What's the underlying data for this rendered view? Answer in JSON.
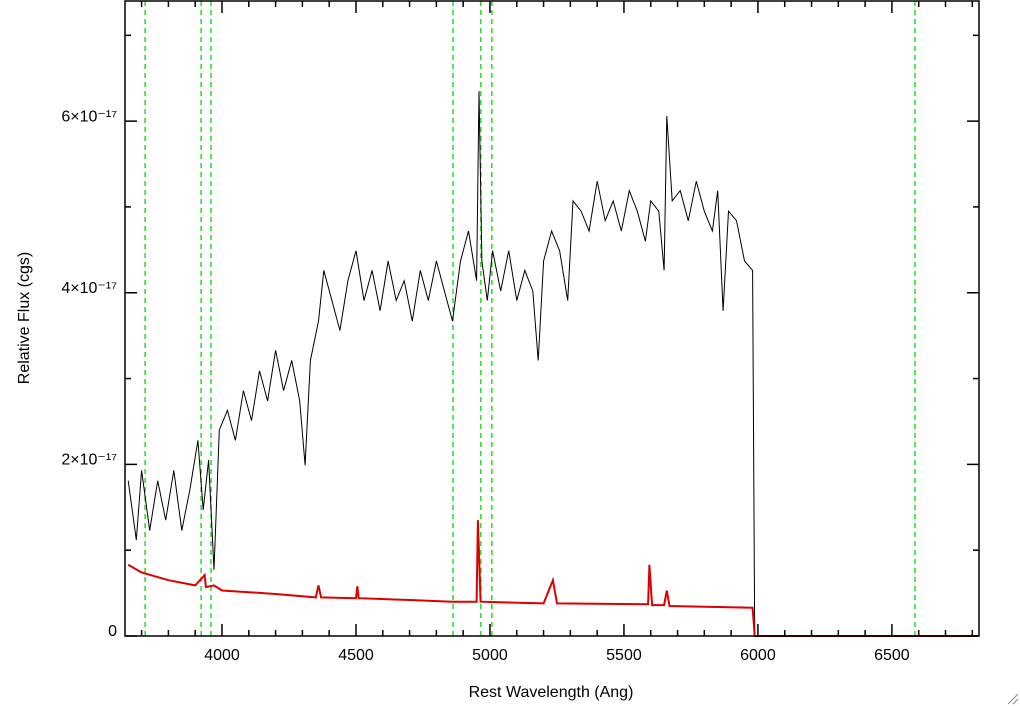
{
  "chart_data": {
    "type": "line",
    "xlabel": "Rest Wavelength (Ang)",
    "ylabel": "Relative Flux (cgs)",
    "xlim": [
      3638,
      6825
    ],
    "ylim": [
      0,
      7.4e-17
    ],
    "xticks": [
      4000,
      4500,
      5000,
      5500,
      6000,
      6500
    ],
    "xminorticks": [
      3700,
      3800,
      3900,
      4100,
      4200,
      4300,
      4400,
      4600,
      4700,
      4800,
      4900,
      5100,
      5200,
      5300,
      5400,
      5600,
      5700,
      5800,
      5900,
      6100,
      6200,
      6300,
      6400,
      6600,
      6700,
      6800
    ],
    "yticks": [
      0,
      {
        "value": 2e-17,
        "label": "2×10⁻¹⁷"
      },
      {
        "value": 4e-17,
        "label": "4×10⁻¹⁷"
      },
      {
        "value": 6e-17,
        "label": "6×10⁻¹⁷"
      }
    ],
    "yminorticks": [
      1e-17,
      3e-17,
      5e-17,
      7e-17
    ],
    "vlines": {
      "color": "#22dd22",
      "x": [
        3713,
        3922,
        3959,
        4862,
        4966,
        5007,
        6586
      ]
    },
    "series": [
      {
        "color": "#000000",
        "x": [
          3650,
          3680,
          3700,
          3730,
          3760,
          3790,
          3820,
          3850,
          3880,
          3910,
          3930,
          3950,
          3970,
          3990,
          4020,
          4050,
          4080,
          4110,
          4140,
          4170,
          4200,
          4230,
          4260,
          4290,
          4310,
          4330,
          4360,
          4380,
          4410,
          4440,
          4470,
          4500,
          4530,
          4560,
          4590,
          4620,
          4650,
          4680,
          4710,
          4740,
          4770,
          4800,
          4830,
          4860,
          4890,
          4920,
          4950,
          4959,
          4970,
          4990,
          5010,
          5040,
          5070,
          5100,
          5130,
          5160,
          5180,
          5200,
          5230,
          5260,
          5290,
          5310,
          5340,
          5370,
          5400,
          5430,
          5460,
          5490,
          5520,
          5550,
          5580,
          5600,
          5630,
          5650,
          5660,
          5680,
          5710,
          5740,
          5770,
          5800,
          5830,
          5850,
          5870,
          5890,
          5920,
          5950,
          5980,
          5988,
          6825
        ],
        "values": [
          1.81e-17,
          1.12e-17,
          1.93e-17,
          1.23e-17,
          1.81e-17,
          1.35e-17,
          1.93e-17,
          1.23e-17,
          1.7e-17,
          2.28e-17,
          1.47e-17,
          2.05e-17,
          7.7e-18,
          2.4e-17,
          2.63e-17,
          2.28e-17,
          2.86e-17,
          2.51e-17,
          3.09e-17,
          2.74e-17,
          3.33e-17,
          2.86e-17,
          3.21e-17,
          2.74e-17,
          1.99e-17,
          3.21e-17,
          3.67e-17,
          4.26e-17,
          3.91e-17,
          3.56e-17,
          4.14e-17,
          4.49e-17,
          3.91e-17,
          4.26e-17,
          3.79e-17,
          4.37e-17,
          3.91e-17,
          4.14e-17,
          3.67e-17,
          4.26e-17,
          3.91e-17,
          4.37e-17,
          4.02e-17,
          3.67e-17,
          4.37e-17,
          4.72e-17,
          4.14e-17,
          6.35e-17,
          4.37e-17,
          3.91e-17,
          4.49e-17,
          4.02e-17,
          4.49e-17,
          3.91e-17,
          4.26e-17,
          4.02e-17,
          3.21e-17,
          4.37e-17,
          4.72e-17,
          4.49e-17,
          3.91e-17,
          5.07e-17,
          4.95e-17,
          4.72e-17,
          5.3e-17,
          4.84e-17,
          5.07e-17,
          4.72e-17,
          5.19e-17,
          4.95e-17,
          4.6e-17,
          5.07e-17,
          4.95e-17,
          4.26e-17,
          6.06e-17,
          5.07e-17,
          5.19e-17,
          4.84e-17,
          5.3e-17,
          4.95e-17,
          4.72e-17,
          5.19e-17,
          3.79e-17,
          4.95e-17,
          4.84e-17,
          4.37e-17,
          4.26e-17,
          0,
          0
        ]
      },
      {
        "color": "#dd0000",
        "x": [
          3650,
          3700,
          3800,
          3900,
          3935,
          3940,
          3970,
          4000,
          4100,
          4200,
          4350,
          4360,
          4370,
          4500,
          4505,
          4510,
          4700,
          4860,
          4950,
          4955,
          4965,
          5200,
          5235,
          5250,
          5590,
          5595,
          5605,
          5650,
          5660,
          5670,
          5980,
          5988,
          6825
        ],
        "values": [
          8.3e-18,
          7.4e-18,
          6.5e-18,
          5.9e-18,
          7.1e-18,
          5.7e-18,
          5.9e-18,
          5.3e-18,
          5.1e-18,
          4.9e-18,
          4.5e-18,
          5.9e-18,
          4.5e-18,
          4.4e-18,
          5.8e-18,
          4.4e-18,
          4.2e-18,
          4e-18,
          4e-18,
          1.35e-17,
          4e-18,
          3.8e-18,
          6.5e-18,
          3.8e-18,
          3.7e-18,
          8.3e-18,
          3.6e-18,
          3.6e-18,
          5.3e-18,
          3.5e-18,
          3.3e-18,
          0,
          0
        ]
      }
    ]
  }
}
